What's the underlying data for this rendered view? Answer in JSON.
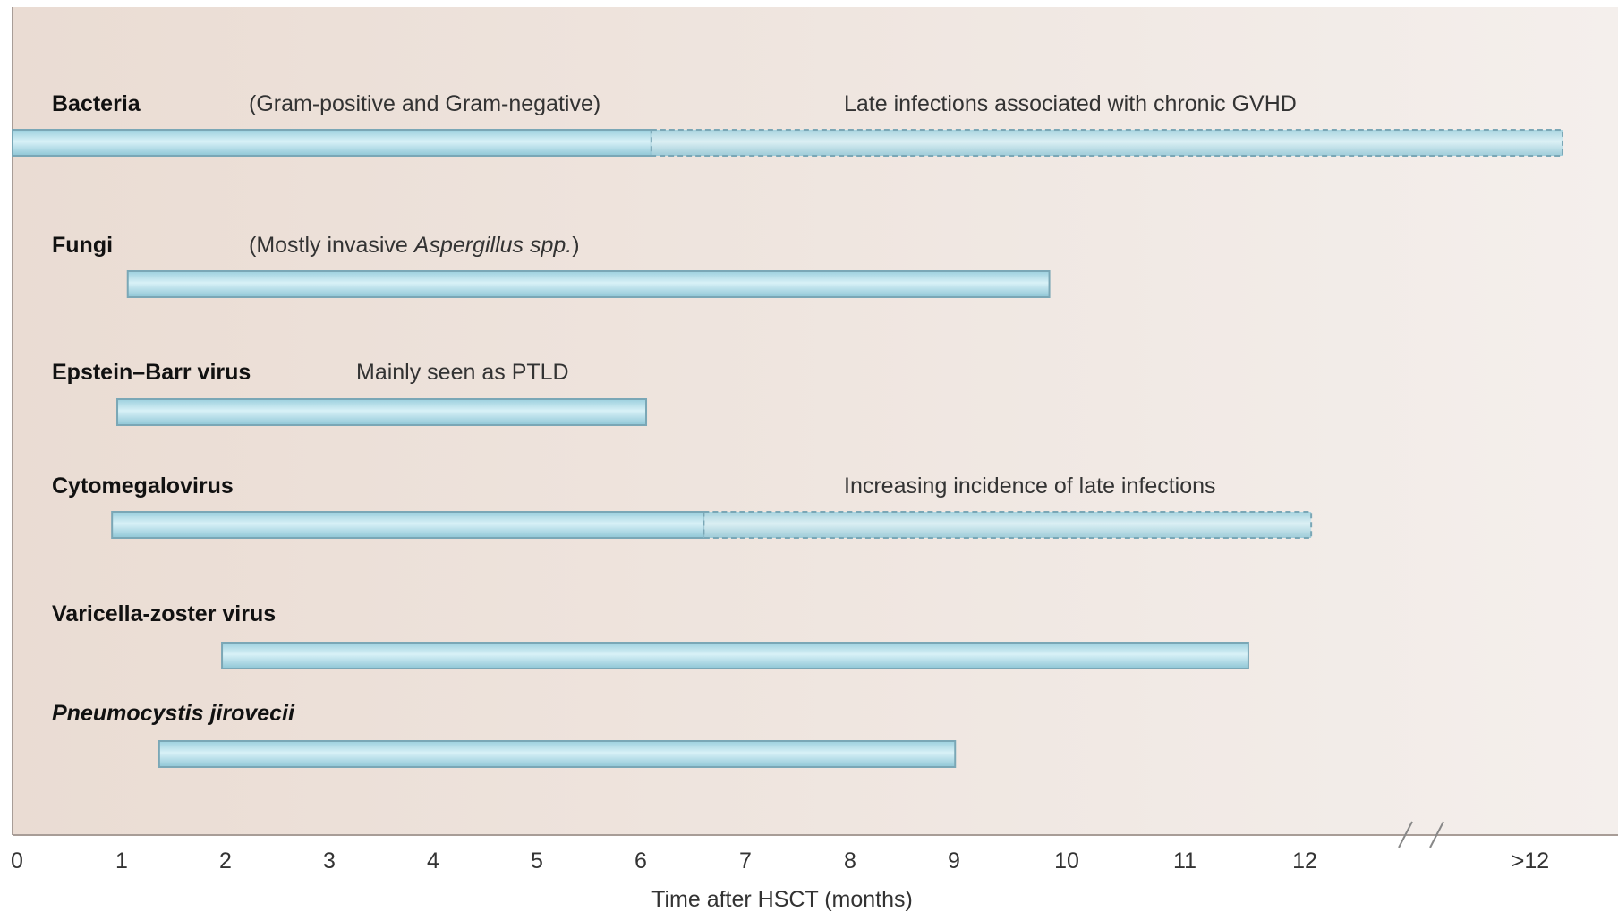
{
  "chart_data": {
    "type": "gantt",
    "xlabel": "Time after HSCT (months)",
    "x_ticks": [
      "0",
      "1",
      "2",
      "3",
      "4",
      "5",
      "6",
      "7",
      "8",
      "9",
      "10",
      "11",
      "12",
      ">12"
    ],
    "x_axis_break": "between 12 and >12",
    "x_range": [
      0,
      14.8
    ],
    "colors": {
      "background": "#eee3dd",
      "bar_fill": "#a9dbe7",
      "bar_highlight": "#d6f0f6",
      "bar_stroke": "#7aa7b6",
      "axis": "#999999"
    },
    "rows": [
      {
        "label": "Bacteria",
        "italic": false,
        "notes": [
          {
            "text": "(Gram-positive and Gram-negative)",
            "italic_part": ""
          },
          {
            "text": "Late infections associated with chronic GVHD",
            "italic_part": ""
          }
        ],
        "segments": [
          {
            "start": 0,
            "end": 6.1,
            "style": "solid"
          },
          {
            "start": 6.1,
            "end": 14.8,
            "style": "dashed"
          }
        ]
      },
      {
        "label": "Fungi",
        "italic": false,
        "notes": [
          {
            "text": "(Mostly invasive ",
            "italic_part": "Aspergillus spp.",
            "suffix": ")"
          }
        ],
        "segments": [
          {
            "start": 1.1,
            "end": 9.9,
            "style": "solid"
          }
        ]
      },
      {
        "label": "Epstein–Barr virus",
        "italic": false,
        "notes": [
          {
            "text": "Mainly seen as PTLD",
            "italic_part": ""
          }
        ],
        "segments": [
          {
            "start": 1.0,
            "end": 6.05,
            "style": "solid"
          }
        ]
      },
      {
        "label": "Cytomegalovirus",
        "italic": false,
        "notes": [
          {
            "text": "Increasing incidence of late infections",
            "italic_part": ""
          }
        ],
        "segments": [
          {
            "start": 0.95,
            "end": 6.6,
            "style": "solid"
          },
          {
            "start": 6.6,
            "end": 12.4,
            "style": "dashed"
          }
        ]
      },
      {
        "label": "Varicella-zoster virus",
        "italic": false,
        "notes": [],
        "segments": [
          {
            "start": 2.0,
            "end": 11.8,
            "style": "solid"
          }
        ]
      },
      {
        "label": "Pneumocystis jirovecii",
        "italic": true,
        "notes": [],
        "segments": [
          {
            "start": 1.4,
            "end": 9.0,
            "style": "solid"
          }
        ]
      }
    ]
  }
}
